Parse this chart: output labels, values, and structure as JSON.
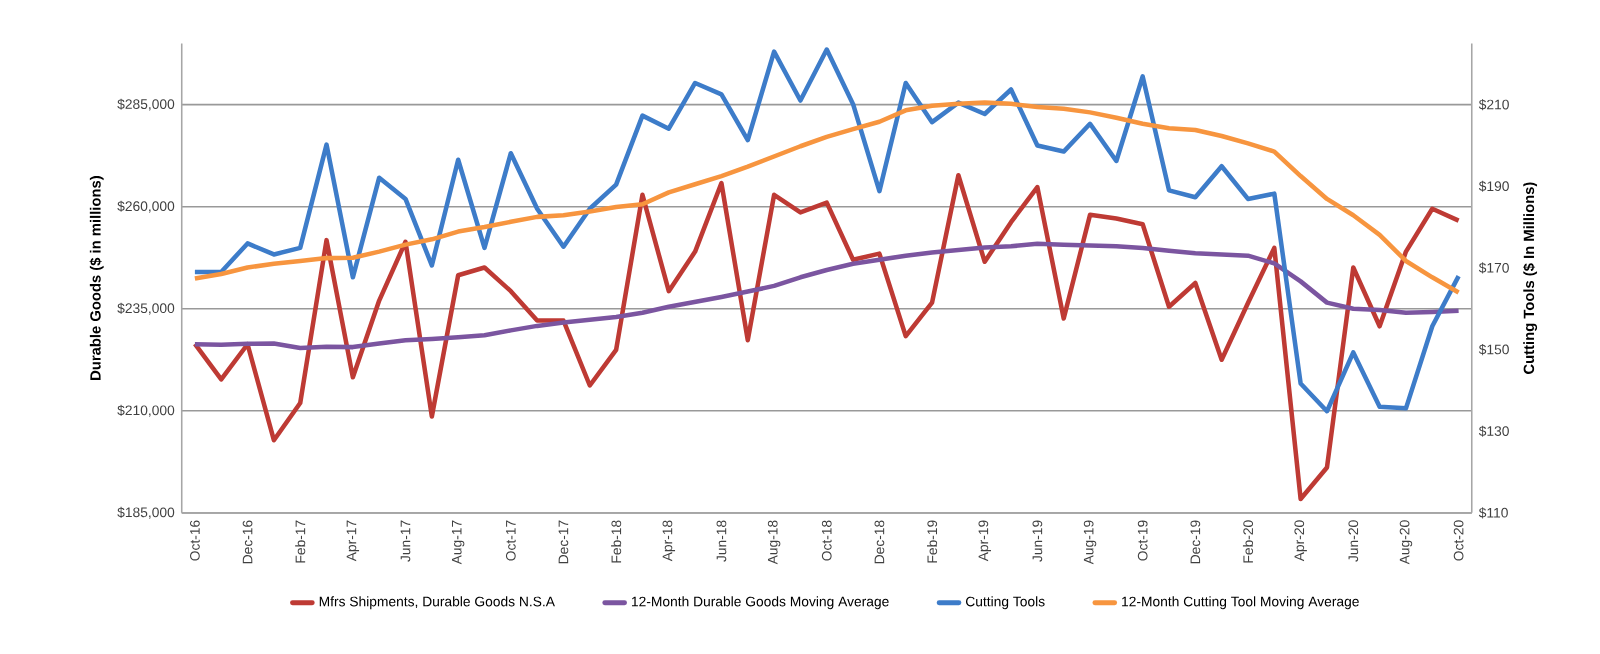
{
  "chart_data": {
    "type": "line",
    "ylabel": "Durable Goods ($ in millions)",
    "y2label": "Cutting Tools ($ In Millions)",
    "categories": [
      "Oct-16",
      null,
      "Dec-16",
      null,
      "Feb-17",
      null,
      "Apr-17",
      null,
      "Jun-17",
      null,
      "Aug-17",
      null,
      "Oct-17",
      null,
      "Dec-17",
      null,
      "Feb-18",
      null,
      "Apr-18",
      null,
      "Jun-18",
      null,
      "Aug-18",
      null,
      "Oct-18",
      null,
      "Dec-18",
      null,
      "Feb-19",
      null,
      "Apr-19",
      null,
      "Jun-19",
      null,
      "Aug-19",
      null,
      "Oct-19",
      null,
      "Dec-19",
      null,
      "Feb-20",
      null,
      "Apr-20",
      null,
      "Jun-20",
      null,
      "Aug-20",
      null,
      "Oct-20"
    ],
    "series": [
      {
        "name": "Mfrs Shipments, Durable Goods N.S.A",
        "color": "#be3a34",
        "values": [
          226400,
          217700,
          226300,
          202800,
          211900,
          251800,
          218200,
          237000,
          251400,
          208600,
          243200,
          245100,
          239300,
          232100,
          232100,
          216200,
          224900,
          262900,
          239300,
          249000,
          265800,
          227300,
          262900,
          258600,
          261000,
          247000,
          248500,
          228300,
          236500,
          267700,
          246500,
          256200,
          264800,
          232600,
          258000,
          257100,
          255700,
          235500,
          241300,
          222500,
          236400,
          249900,
          188400,
          196100,
          245100,
          230700,
          249000,
          259500,
          256600
        ]
      },
      {
        "name": "12-Month Durable Goods Moving Average",
        "color": "#7b55a0",
        "values": [
          226300,
          226200,
          226400,
          226500,
          225400,
          225700,
          225600,
          226500,
          227300,
          227600,
          228000,
          228500,
          229700,
          230800,
          231600,
          232300,
          233000,
          234000,
          235500,
          236700,
          237900,
          239200,
          240600,
          242700,
          244500,
          246000,
          247000,
          248000,
          248800,
          249400,
          250000,
          250300,
          250900,
          250700,
          250500,
          250300,
          249900,
          249200,
          248600,
          248300,
          248000,
          246100,
          241700,
          236500,
          235000,
          234700,
          234000,
          234200,
          234500
        ]
      },
      {
        "name": "Cutting Tools",
        "color": "#3d7cc9",
        "axis": "y2",
        "values": [
          169,
          169,
          176,
          173.3,
          174.9,
          200.2,
          167.7,
          192.1,
          186.9,
          170.6,
          196.5,
          174.9,
          198.1,
          184.5,
          175.2,
          184.5,
          190.4,
          207.3,
          204.1,
          215.3,
          212.5,
          201.3,
          223,
          211,
          223.5,
          210.1,
          188.8,
          215.3,
          205.7,
          210.5,
          207.7,
          213.7,
          200,
          198.5,
          205.3,
          196.2,
          216.9,
          189,
          187.3,
          194.9,
          186.9,
          188.2,
          141.7,
          134.9,
          149.3,
          136,
          135.6,
          155.7,
          168
        ]
      },
      {
        "name": "12-Month Cutting Tool Moving Average",
        "color": "#f7953f",
        "axis": "y2",
        "values": [
          167.4,
          168.5,
          170.1,
          171,
          171.7,
          172.4,
          172.5,
          174,
          175.7,
          177,
          178.9,
          180,
          181.3,
          182.5,
          182.9,
          183.8,
          184.9,
          185.6,
          188.5,
          190.5,
          192.5,
          194.8,
          197.3,
          199.8,
          202.1,
          204,
          205.8,
          208.6,
          209.7,
          210.2,
          210.5,
          210.2,
          209.4,
          209,
          208.1,
          206.8,
          205.3,
          204.2,
          203.8,
          202.3,
          200.5,
          198.5,
          192.5,
          186.9,
          182.9,
          178.1,
          171.7,
          167.7,
          164
        ]
      }
    ],
    "ylim": [
      185000,
      300000
    ],
    "yticks": [
      {
        "value": 185000,
        "label": "$185,000"
      },
      {
        "value": 210000,
        "label": "$210,000"
      },
      {
        "value": 235000,
        "label": "$235,000"
      },
      {
        "value": 260000,
        "label": "$260,000"
      },
      {
        "value": 285000,
        "label": "$285,000"
      }
    ],
    "y2lim": [
      110,
      225
    ],
    "y2ticks": [
      {
        "value": 110,
        "label": "$110"
      },
      {
        "value": 130,
        "label": "$130"
      },
      {
        "value": 150,
        "label": "$150"
      },
      {
        "value": 170,
        "label": "$170"
      },
      {
        "value": 190,
        "label": "$190"
      },
      {
        "value": 210,
        "label": "$210"
      }
    ],
    "grid": "y",
    "legend": "bottom",
    "marker": "none",
    "line_style": "solid"
  }
}
